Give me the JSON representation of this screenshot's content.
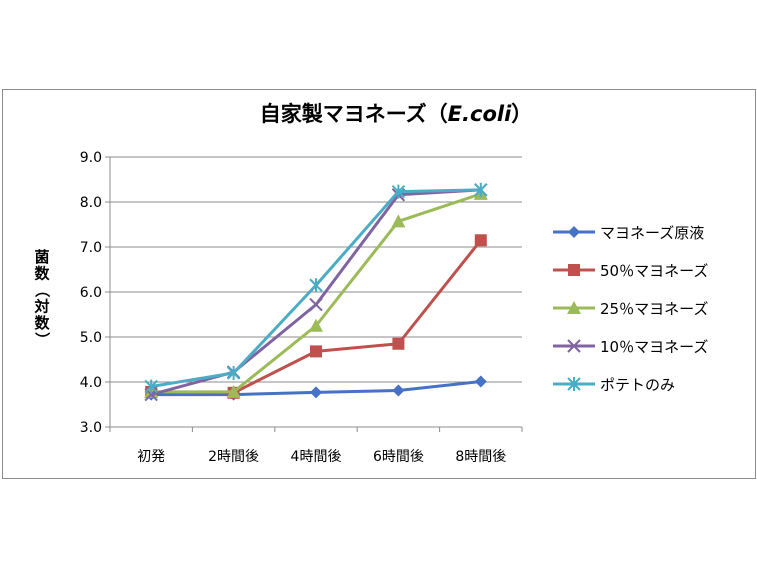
{
  "chart_data": {
    "type": "line",
    "title": "自家製マヨネーズ",
    "title_paren_open": "（",
    "title_italic": "E.coli",
    "title_paren_close": "）",
    "ylabel_chars": [
      "菌",
      "数",
      "（",
      "対",
      "数",
      "）"
    ],
    "categories": [
      "初発",
      "2時間後",
      "4時間後",
      "6時間後",
      "8時間後"
    ],
    "yticks": [
      "3.0",
      "4.0",
      "5.0",
      "6.0",
      "7.0",
      "8.0",
      "9.0"
    ],
    "ylim": [
      3.0,
      9.0
    ],
    "grid": true,
    "legend_position": "right",
    "series": [
      {
        "name": "マヨネーズ原液",
        "color": "#4572C4",
        "marker": "diamond",
        "values": [
          3.72,
          3.72,
          3.77,
          3.81,
          4.01
        ]
      },
      {
        "name": "50％マヨネーズ",
        "color": "#C0504D",
        "marker": "square",
        "values": [
          3.78,
          3.76,
          4.68,
          4.85,
          7.15
        ]
      },
      {
        "name": "25％マヨネーズ",
        "color": "#9BBB59",
        "marker": "triangle",
        "values": [
          3.78,
          3.78,
          5.25,
          7.57,
          8.18
        ]
      },
      {
        "name": "10％マヨネーズ",
        "color": "#8064A2",
        "marker": "x",
        "values": [
          3.72,
          4.22,
          5.72,
          8.16,
          8.27
        ]
      },
      {
        "name": "ポテトのみ",
        "color": "#4BACC6",
        "marker": "star",
        "values": [
          3.9,
          4.2,
          6.15,
          8.23,
          8.27
        ]
      }
    ]
  }
}
